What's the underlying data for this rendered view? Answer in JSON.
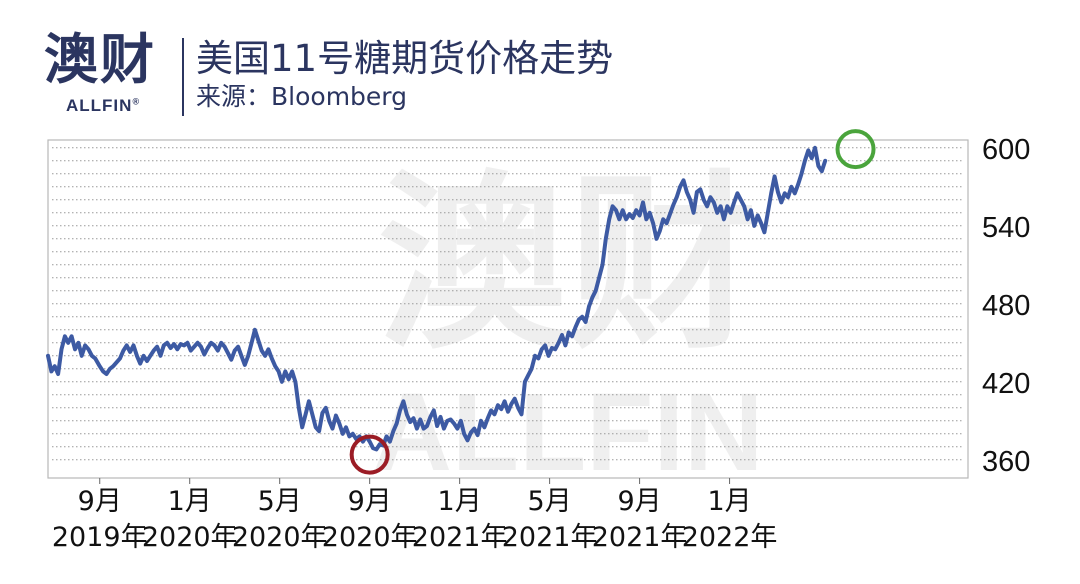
{
  "header": {
    "logo_cn": "澳财",
    "logo_en": "ALLFIN",
    "logo_mark": "®",
    "title": "美国11号糖期货价格走势",
    "source": "来源：Bloomberg"
  },
  "colors": {
    "line": "#3d5aa3",
    "low_marker": "#9b1c25",
    "high_marker": "#4aa43c",
    "watermark": "#efefef",
    "grid": "#9a9a9a"
  },
  "chart_data": {
    "type": "line",
    "title": "美国11号糖期货价格走势",
    "xlabel": "",
    "ylabel": "",
    "ylim": [
      346,
      606
    ],
    "xlim": [
      -2.3,
      38.6
    ],
    "grid": true,
    "y_axis_side": "right",
    "yticks": [
      360,
      420,
      480,
      540,
      600
    ],
    "xticks": [
      {
        "pos": 0,
        "month": "9月",
        "year": "2019年"
      },
      {
        "pos": 4,
        "month": "1月",
        "year": "2020年"
      },
      {
        "pos": 8,
        "month": "5月",
        "year": "2020年"
      },
      {
        "pos": 12,
        "month": "9月",
        "year": "2020年"
      },
      {
        "pos": 16,
        "month": "1月",
        "year": "2021年"
      },
      {
        "pos": 20,
        "month": "5月",
        "year": "2021年"
      },
      {
        "pos": 24,
        "month": "9月",
        "year": "2021年"
      },
      {
        "pos": 28,
        "month": "1月",
        "year": "2022年"
      }
    ],
    "watermark_text": [
      "澳财",
      "ALLFIN"
    ],
    "highlights": [
      {
        "label": "low",
        "x": 12.0,
        "y": 364
      },
      {
        "label": "high",
        "x": 33.6,
        "y": 599
      }
    ],
    "series": [
      {
        "values": [
          [
            -2.3,
            440
          ],
          [
            -2.15,
            428
          ],
          [
            -2.0,
            432
          ],
          [
            -1.85,
            426
          ],
          [
            -1.7,
            445
          ],
          [
            -1.55,
            455
          ],
          [
            -1.4,
            450
          ],
          [
            -1.25,
            455
          ],
          [
            -1.1,
            445
          ],
          [
            -0.95,
            450
          ],
          [
            -0.8,
            440
          ],
          [
            -0.65,
            448
          ],
          [
            -0.5,
            445
          ],
          [
            -0.35,
            440
          ],
          [
            -0.2,
            438
          ],
          [
            0.0,
            432
          ],
          [
            0.15,
            428
          ],
          [
            0.3,
            426
          ],
          [
            0.45,
            430
          ],
          [
            0.6,
            432
          ],
          [
            0.75,
            435
          ],
          [
            0.9,
            438
          ],
          [
            1.05,
            444
          ],
          [
            1.2,
            448
          ],
          [
            1.35,
            443
          ],
          [
            1.5,
            448
          ],
          [
            1.65,
            440
          ],
          [
            1.8,
            434
          ],
          [
            1.95,
            440
          ],
          [
            2.1,
            436
          ],
          [
            2.25,
            440
          ],
          [
            2.4,
            444
          ],
          [
            2.55,
            447
          ],
          [
            2.7,
            440
          ],
          [
            2.85,
            448
          ],
          [
            3.0,
            450
          ],
          [
            3.15,
            446
          ],
          [
            3.3,
            449
          ],
          [
            3.45,
            445
          ],
          [
            3.6,
            449
          ],
          [
            3.75,
            448
          ],
          [
            3.9,
            450
          ],
          [
            4.05,
            444
          ],
          [
            4.2,
            447
          ],
          [
            4.35,
            450
          ],
          [
            4.5,
            447
          ],
          [
            4.65,
            441
          ],
          [
            4.8,
            446
          ],
          [
            4.95,
            450
          ],
          [
            5.1,
            448
          ],
          [
            5.25,
            444
          ],
          [
            5.4,
            450
          ],
          [
            5.55,
            447
          ],
          [
            5.7,
            442
          ],
          [
            5.85,
            437
          ],
          [
            6.0,
            444
          ],
          [
            6.15,
            447
          ],
          [
            6.3,
            440
          ],
          [
            6.45,
            433
          ],
          [
            6.6,
            440
          ],
          [
            6.75,
            450
          ],
          [
            6.9,
            460
          ],
          [
            7.05,
            452
          ],
          [
            7.2,
            444
          ],
          [
            7.35,
            440
          ],
          [
            7.5,
            445
          ],
          [
            7.65,
            438
          ],
          [
            7.8,
            432
          ],
          [
            7.95,
            428
          ],
          [
            8.1,
            420
          ],
          [
            8.25,
            428
          ],
          [
            8.4,
            422
          ],
          [
            8.55,
            428
          ],
          [
            8.7,
            420
          ],
          [
            8.85,
            400
          ],
          [
            9.0,
            385
          ],
          [
            9.15,
            395
          ],
          [
            9.3,
            405
          ],
          [
            9.45,
            395
          ],
          [
            9.6,
            385
          ],
          [
            9.75,
            382
          ],
          [
            9.9,
            396
          ],
          [
            10.05,
            400
          ],
          [
            10.2,
            390
          ],
          [
            10.35,
            384
          ],
          [
            10.5,
            394
          ],
          [
            10.65,
            388
          ],
          [
            10.8,
            380
          ],
          [
            10.95,
            385
          ],
          [
            11.1,
            378
          ],
          [
            11.25,
            380
          ],
          [
            11.4,
            376
          ],
          [
            11.55,
            378
          ],
          [
            11.7,
            374
          ],
          [
            11.85,
            378
          ],
          [
            12.0,
            374
          ],
          [
            12.15,
            369
          ],
          [
            12.3,
            368
          ],
          [
            12.45,
            372
          ],
          [
            12.6,
            371
          ],
          [
            12.75,
            378
          ],
          [
            12.9,
            374
          ],
          [
            13.05,
            382
          ],
          [
            13.2,
            388
          ],
          [
            13.35,
            398
          ],
          [
            13.5,
            405
          ],
          [
            13.65,
            395
          ],
          [
            13.8,
            389
          ],
          [
            13.95,
            392
          ],
          [
            14.1,
            384
          ],
          [
            14.25,
            391
          ],
          [
            14.4,
            384
          ],
          [
            14.55,
            386
          ],
          [
            14.7,
            393
          ],
          [
            14.85,
            398
          ],
          [
            15.0,
            386
          ],
          [
            15.15,
            393
          ],
          [
            15.3,
            384
          ],
          [
            15.45,
            390
          ],
          [
            15.6,
            391
          ],
          [
            15.75,
            388
          ],
          [
            15.9,
            384
          ],
          [
            16.05,
            390
          ],
          [
            16.2,
            380
          ],
          [
            16.35,
            375
          ],
          [
            16.5,
            381
          ],
          [
            16.65,
            384
          ],
          [
            16.8,
            379
          ],
          [
            16.95,
            390
          ],
          [
            17.1,
            385
          ],
          [
            17.25,
            392
          ],
          [
            17.4,
            398
          ],
          [
            17.55,
            395
          ],
          [
            17.7,
            402
          ],
          [
            17.85,
            399
          ],
          [
            18.0,
            405
          ],
          [
            18.15,
            397
          ],
          [
            18.3,
            403
          ],
          [
            18.45,
            407
          ],
          [
            18.6,
            400
          ],
          [
            18.75,
            395
          ],
          [
            18.9,
            420
          ],
          [
            19.05,
            425
          ],
          [
            19.2,
            430
          ],
          [
            19.35,
            440
          ],
          [
            19.5,
            438
          ],
          [
            19.65,
            445
          ],
          [
            19.8,
            448
          ],
          [
            19.95,
            440
          ],
          [
            20.1,
            446
          ],
          [
            20.25,
            445
          ],
          [
            20.4,
            450
          ],
          [
            20.55,
            456
          ],
          [
            20.7,
            448
          ],
          [
            20.85,
            458
          ],
          [
            21.0,
            455
          ],
          [
            21.15,
            462
          ],
          [
            21.3,
            468
          ],
          [
            21.45,
            470
          ],
          [
            21.6,
            466
          ],
          [
            21.75,
            478
          ],
          [
            21.9,
            485
          ],
          [
            22.05,
            490
          ],
          [
            22.2,
            500
          ],
          [
            22.35,
            510
          ],
          [
            22.5,
            530
          ],
          [
            22.65,
            545
          ],
          [
            22.8,
            555
          ],
          [
            22.95,
            552
          ],
          [
            23.1,
            545
          ],
          [
            23.25,
            552
          ],
          [
            23.4,
            545
          ],
          [
            23.55,
            549
          ],
          [
            23.7,
            546
          ],
          [
            23.85,
            552
          ],
          [
            24.0,
            548
          ],
          [
            24.15,
            558
          ],
          [
            24.3,
            545
          ],
          [
            24.45,
            550
          ],
          [
            24.6,
            542
          ],
          [
            24.75,
            530
          ],
          [
            24.9,
            536
          ],
          [
            25.05,
            545
          ],
          [
            25.2,
            542
          ],
          [
            25.35,
            549
          ],
          [
            25.5,
            556
          ],
          [
            25.65,
            562
          ],
          [
            25.8,
            570
          ],
          [
            25.95,
            575
          ],
          [
            26.1,
            566
          ],
          [
            26.25,
            560
          ],
          [
            26.4,
            550
          ],
          [
            26.55,
            566
          ],
          [
            26.7,
            568
          ],
          [
            26.85,
            560
          ],
          [
            27.0,
            555
          ],
          [
            27.15,
            562
          ],
          [
            27.3,
            558
          ],
          [
            27.45,
            550
          ],
          [
            27.6,
            555
          ],
          [
            27.75,
            545
          ],
          [
            27.9,
            555
          ],
          [
            28.05,
            550
          ],
          [
            28.2,
            558
          ],
          [
            28.35,
            565
          ],
          [
            28.5,
            560
          ],
          [
            28.65,
            555
          ],
          [
            28.8,
            545
          ],
          [
            28.95,
            552
          ],
          [
            29.1,
            540
          ],
          [
            29.25,
            548
          ],
          [
            29.4,
            542
          ],
          [
            29.55,
            535
          ],
          [
            29.7,
            550
          ],
          [
            29.85,
            565
          ],
          [
            30.0,
            578
          ],
          [
            30.15,
            566
          ],
          [
            30.3,
            558
          ],
          [
            30.45,
            565
          ],
          [
            30.6,
            562
          ],
          [
            30.75,
            570
          ],
          [
            30.9,
            565
          ],
          [
            31.05,
            572
          ],
          [
            31.2,
            580
          ],
          [
            31.35,
            590
          ],
          [
            31.5,
            598
          ],
          [
            31.65,
            592
          ],
          [
            31.8,
            600
          ],
          [
            31.95,
            586
          ],
          [
            32.1,
            582
          ],
          [
            32.25,
            590
          ]
        ]
      }
    ]
  }
}
